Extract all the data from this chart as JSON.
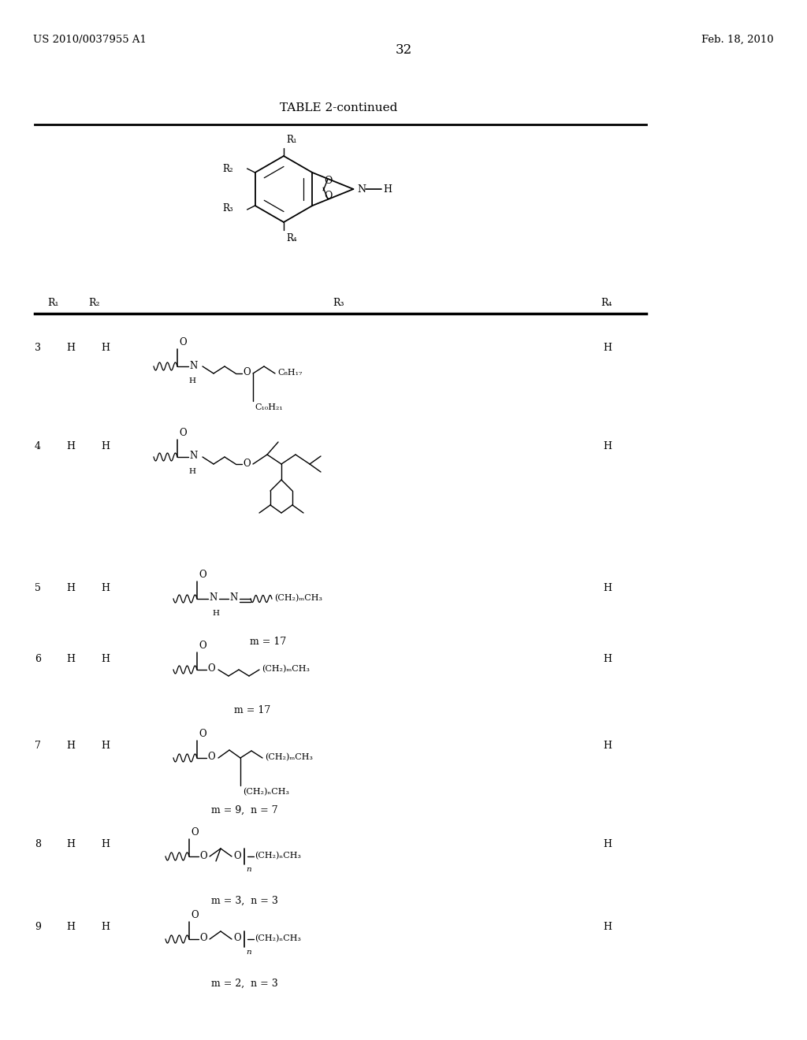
{
  "bg_color": "#ffffff",
  "header_left": "US 2010/0037955 A1",
  "header_right": "Feb. 18, 2010",
  "page_number": "32",
  "table_title": "TABLE 2-continued"
}
